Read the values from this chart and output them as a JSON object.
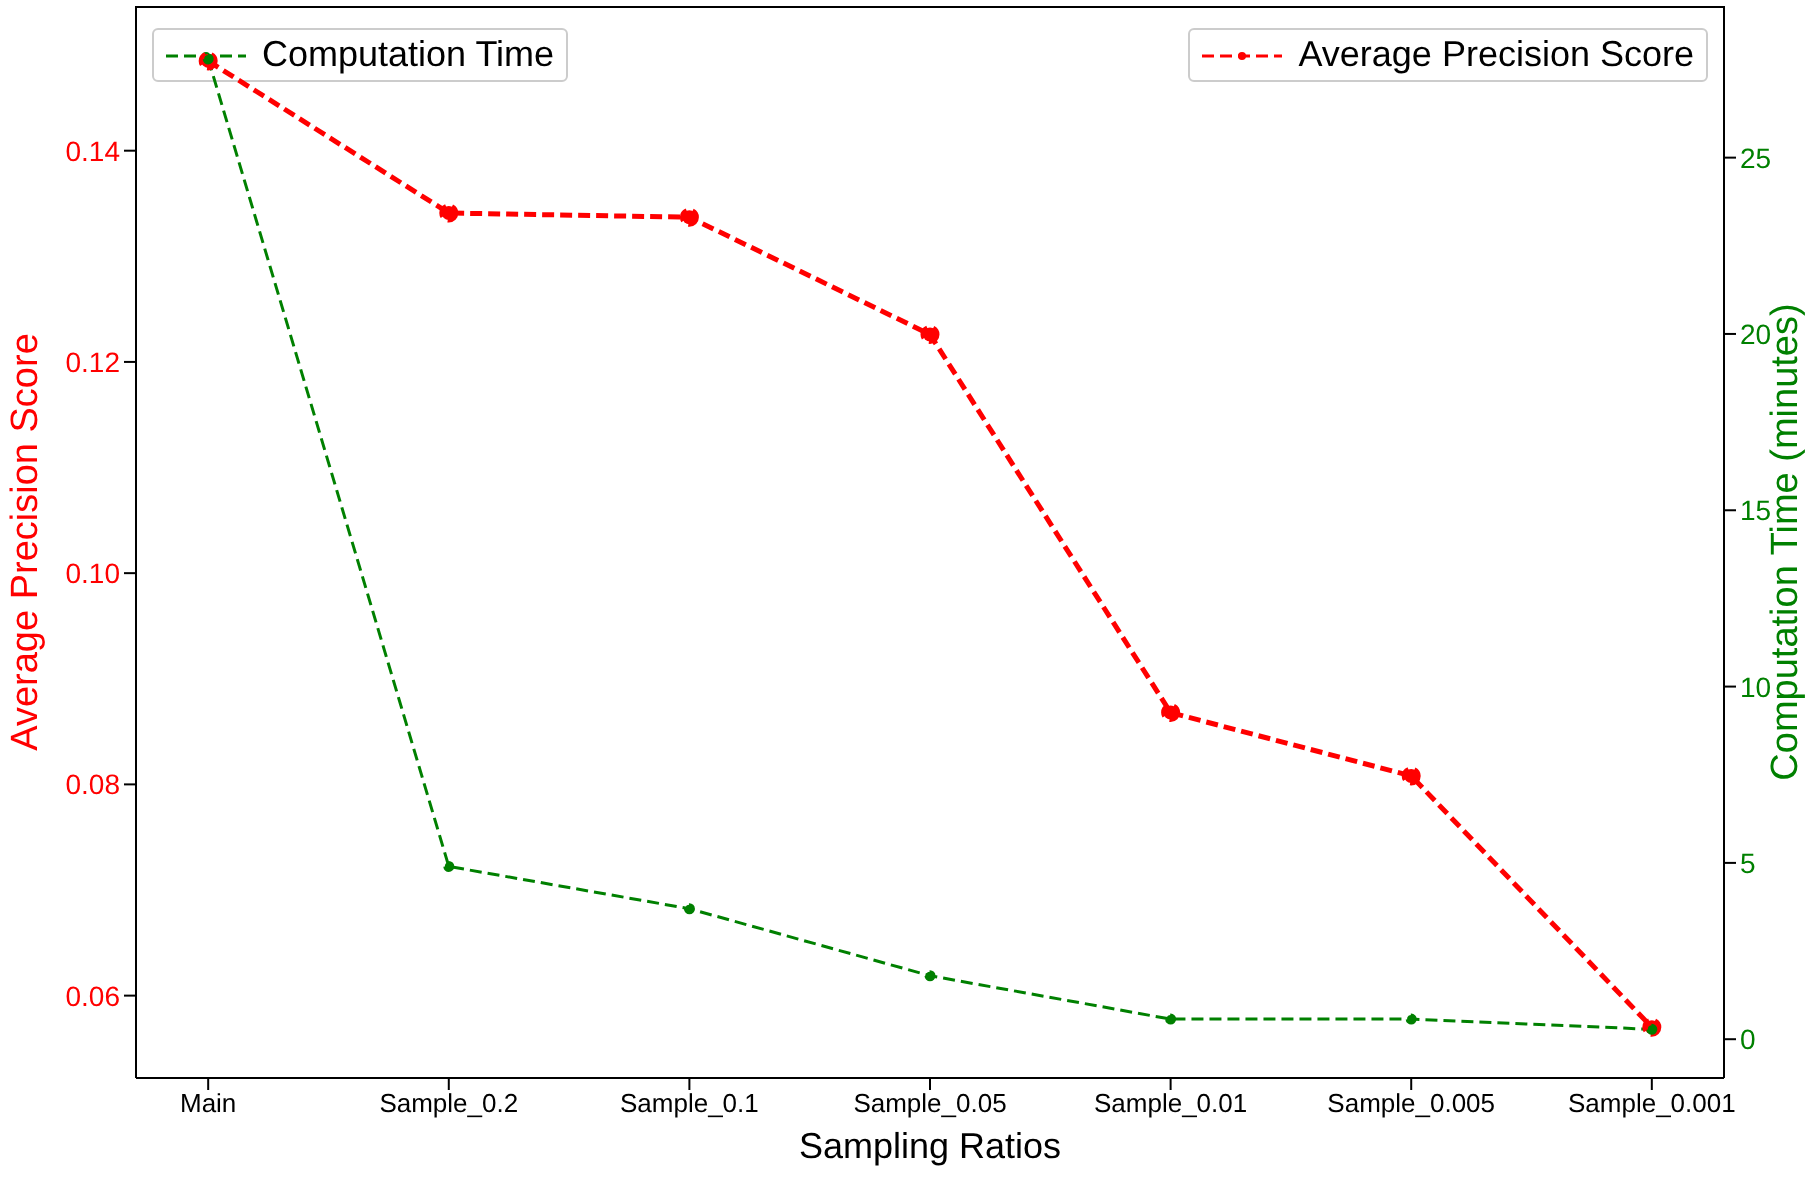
{
  "chart_data": {
    "type": "line",
    "xlabel": "Sampling Ratios",
    "ylabel": "Average Precision Score",
    "y2label": "Computation Time (minutes)",
    "categories": [
      "Main",
      "Sample_0.2",
      "Sample_0.1",
      "Sample_0.05",
      "Sample_0.01",
      "Sample_0.005",
      "Sample_0.001"
    ],
    "series": [
      {
        "name": "Average Precision Score",
        "color": "#ff0000",
        "values": [
          0.1485,
          0.1341,
          0.1337,
          0.1226,
          0.0868,
          0.0808,
          0.057
        ]
      },
      {
        "name": "Computation Time",
        "color": "#008000",
        "axis": "y2",
        "values": [
          27.8,
          4.9,
          3.7,
          1.8,
          0.57,
          0.57,
          0.28
        ]
      }
    ],
    "ylim": [
      0.0522,
      0.1537
    ],
    "yticks": [
      {
        "value": 0.06,
        "label": "0.06"
      },
      {
        "value": 0.08,
        "label": "0.08"
      },
      {
        "value": 0.1,
        "label": "0.10"
      },
      {
        "value": 0.12,
        "label": "0.12"
      },
      {
        "value": 0.14,
        "label": "0.14"
      }
    ],
    "y2lim": [
      -1.1,
      29.3
    ],
    "y2ticks": [
      0,
      5,
      10,
      15,
      20,
      25
    ],
    "marker": "circle",
    "line_style": "dashed",
    "legend": "top"
  }
}
